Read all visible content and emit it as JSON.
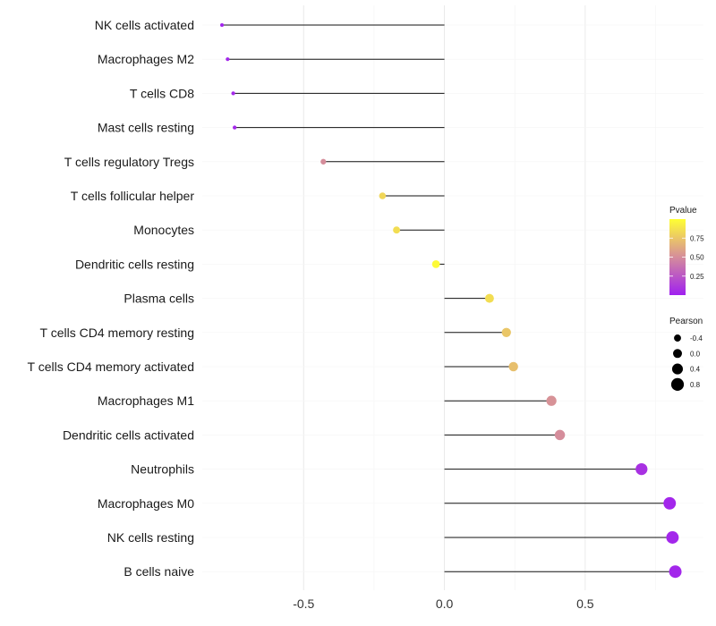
{
  "chart_data": {
    "type": "lollipop",
    "orientation": "horizontal",
    "categories": [
      "NK cells activated",
      "Macrophages M2",
      "T cells CD8",
      "Mast cells resting",
      "T cells regulatory  Tregs",
      "T cells follicular helper",
      "Monocytes",
      "Dendritic cells resting",
      "Plasma cells",
      "T cells CD4 memory resting",
      "T cells CD4 memory activated",
      "Macrophages M1",
      "Dendritic cells activated",
      "Neutrophils",
      "Macrophages M0",
      "NK cells resting",
      "B cells naive"
    ],
    "pearson": [
      -0.79,
      -0.77,
      -0.75,
      -0.745,
      -0.43,
      -0.22,
      -0.17,
      -0.03,
      0.16,
      0.22,
      0.245,
      0.38,
      0.41,
      0.7,
      0.8,
      0.81,
      0.82
    ],
    "pvalue": [
      0.02,
      0.03,
      0.04,
      0.04,
      0.5,
      0.82,
      0.85,
      0.98,
      0.85,
      0.75,
      0.72,
      0.52,
      0.5,
      0.08,
      0.03,
      0.03,
      0.03
    ],
    "xlim": [
      -0.86,
      0.92
    ],
    "xticks": [
      -0.5,
      0.0,
      0.5
    ],
    "xtick_labels": [
      "-0.5",
      "0.0",
      "0.5"
    ],
    "grid": true,
    "legend_position": "right",
    "color_scale": {
      "title": "Pvalue",
      "low_color": "#a020f0",
      "mid_color": "#d58d9b",
      "high_color": "#ffff33",
      "domain": [
        0.0,
        1.0
      ],
      "breaks": [
        0.25,
        0.5,
        0.75
      ],
      "labels": [
        "0.25",
        "0.50",
        "0.75"
      ]
    },
    "size_scale": {
      "title": "Pearson",
      "breaks": [
        -0.4,
        0.0,
        0.4,
        0.8
      ],
      "labels": [
        "-0.4",
        "0.0",
        "0.4",
        "0.8"
      ]
    }
  }
}
